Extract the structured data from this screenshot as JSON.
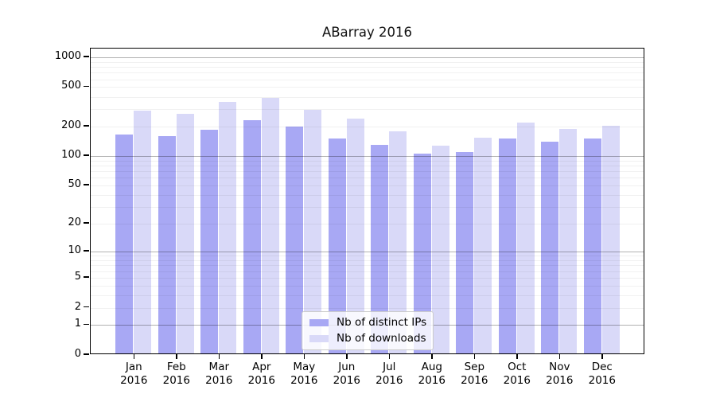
{
  "chart_data": {
    "type": "bar",
    "title": "ABarray 2016",
    "categories": [
      "Jan 2016",
      "Feb 2016",
      "Mar 2016",
      "Apr 2016",
      "May 2016",
      "Jun 2016",
      "Jul 2016",
      "Aug 2016",
      "Sep 2016",
      "Oct 2016",
      "Nov 2016",
      "Dec 2016"
    ],
    "series": [
      {
        "name": "Nb of distinct IPs",
        "color": "#a8a8f4",
        "values": [
          166,
          160,
          186,
          232,
          201,
          150,
          131,
          107,
          110,
          150,
          140,
          150
        ]
      },
      {
        "name": "Nb of downloads",
        "color": "#d9d9f8",
        "values": [
          288,
          271,
          357,
          390,
          296,
          239,
          179,
          127,
          155,
          218,
          190,
          205
        ]
      }
    ],
    "xlabel": "",
    "ylabel": "",
    "yscale": "log10(1+value)",
    "ylim": [
      0,
      1226
    ],
    "ytick_values": [
      0,
      1,
      2,
      5,
      10,
      20,
      50,
      100,
      200,
      500,
      1000
    ],
    "major_gridlines": [
      1,
      10,
      100,
      1000
    ],
    "minor_gridlines": [
      2,
      3,
      4,
      5,
      6,
      7,
      8,
      9,
      20,
      30,
      40,
      50,
      60,
      70,
      80,
      90,
      200,
      300,
      400,
      500,
      600,
      700,
      800,
      900
    ],
    "grid": "horizontal",
    "legend_position": "inside lower-center"
  },
  "colors": {
    "bar_distinct_ips": "#a8a8f4",
    "bar_downloads": "#d9d9f8",
    "spine": "#000000",
    "major_grid": "#b0b0b0",
    "minor_grid": "#ececec",
    "legend_border": "#cccccc"
  }
}
